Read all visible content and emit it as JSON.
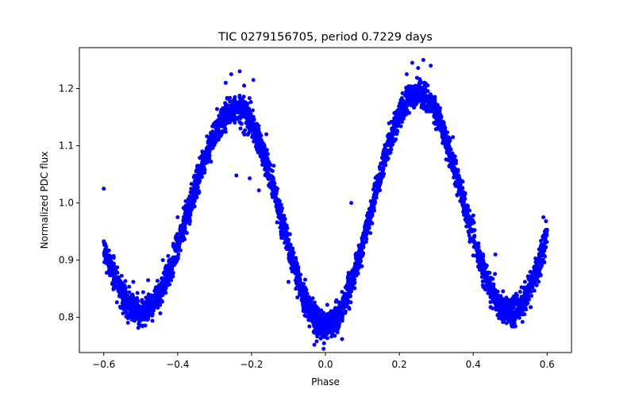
{
  "chart_data": {
    "type": "scatter",
    "title": "TIC 0279156705, period 0.7229 days",
    "xlabel": "Phase",
    "ylabel": "Normalized PDC flux",
    "xlim": [
      -0.666,
      0.666
    ],
    "ylim": [
      0.7385,
      1.2715
    ],
    "xticks": [
      -0.6,
      -0.4,
      -0.2,
      0.0,
      0.2,
      0.4,
      0.6
    ],
    "xtick_labels": [
      "−0.6",
      "−0.4",
      "−0.2",
      "0.0",
      "0.2",
      "0.4",
      "0.6"
    ],
    "yticks": [
      0.8,
      0.9,
      1.0,
      1.1,
      1.2
    ],
    "ytick_labels": [
      "0.8",
      "0.9",
      "1.0",
      "1.1",
      "1.2"
    ],
    "grid": false,
    "marker_color": "#0000ff",
    "series": [
      {
        "model": {
          "x_range": [
            -0.6,
            0.6
          ],
          "minima": [
            {
              "phase": -0.5,
              "flux": 0.81
            },
            {
              "phase": 0.0,
              "flux": 0.785
            },
            {
              "phase": 0.5,
              "flux": 0.81
            }
          ],
          "maxima": [
            {
              "phase": -0.24,
              "flux": 1.163
            },
            {
              "phase": 0.25,
              "flux": 1.192
            }
          ],
          "scatter": 0.012
        },
        "outliers": [
          {
            "x": -0.6,
            "y": 1.025
          },
          {
            "x": -0.241,
            "y": 1.048
          },
          {
            "x": -0.205,
            "y": 1.043
          },
          {
            "x": -0.18,
            "y": 1.022
          },
          {
            "x": -0.12,
            "y": 0.945
          },
          {
            "x": -0.095,
            "y": 0.92
          },
          {
            "x": -0.1,
            "y": 0.862
          },
          {
            "x": -0.03,
            "y": 0.752
          },
          {
            "x": -0.005,
            "y": 0.745
          },
          {
            "x": 0.045,
            "y": 0.762
          },
          {
            "x": -0.27,
            "y": 1.21
          },
          {
            "x": -0.255,
            "y": 1.225
          },
          {
            "x": -0.232,
            "y": 1.23
          },
          {
            "x": -0.22,
            "y": 1.205
          },
          {
            "x": -0.195,
            "y": 1.215
          },
          {
            "x": 0.235,
            "y": 1.245
          },
          {
            "x": 0.265,
            "y": 1.25
          },
          {
            "x": 0.285,
            "y": 1.24
          },
          {
            "x": 0.22,
            "y": 1.225
          },
          {
            "x": 0.59,
            "y": 0.975
          },
          {
            "x": -0.4,
            "y": 0.975
          },
          {
            "x": -0.35,
            "y": 1.055
          },
          {
            "x": -0.14,
            "y": 1.065
          },
          {
            "x": -0.16,
            "y": 1.12
          },
          {
            "x": 0.07,
            "y": 1.0
          },
          {
            "x": 0.345,
            "y": 1.115
          },
          {
            "x": 0.46,
            "y": 0.91
          },
          {
            "x": -0.44,
            "y": 0.9
          },
          {
            "x": -0.52,
            "y": 0.862
          },
          {
            "x": -0.48,
            "y": 0.865
          },
          {
            "x": 0.54,
            "y": 0.862
          },
          {
            "x": -0.08,
            "y": 0.85
          },
          {
            "x": 0.03,
            "y": 0.83
          },
          {
            "x": 0.49,
            "y": 0.79
          }
        ]
      }
    ]
  }
}
